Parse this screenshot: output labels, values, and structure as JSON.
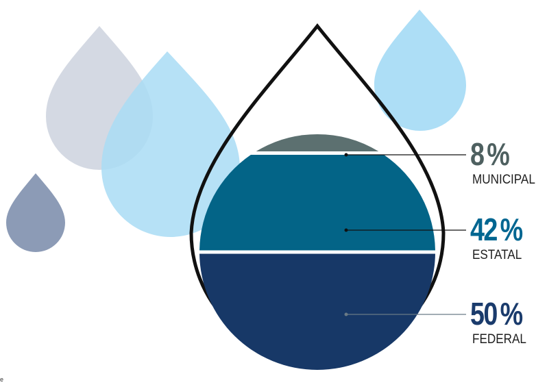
{
  "chart_data": {
    "type": "pie",
    "slices": [
      {
        "label": "MUNICIPAL",
        "value": 8,
        "display": "8",
        "color": "#5c7070"
      },
      {
        "label": "ESTATAL",
        "value": 42,
        "display": "42",
        "color": "#036487"
      },
      {
        "label": "FEDERAL",
        "value": 50,
        "display": "50",
        "color": "#173867"
      }
    ],
    "unit": "%",
    "label_colors": {
      "MUNICIPAL": "#4e6060",
      "ESTATAL": "#006691",
      "FEDERAL": "#1a3b6c"
    }
  },
  "decoration": {
    "drop_colors": {
      "gray": "#c9d0dc",
      "light_blue": "#a9dcf5",
      "slate": "#8c9bb6",
      "outline": "#111111"
    }
  },
  "footnote": "e"
}
